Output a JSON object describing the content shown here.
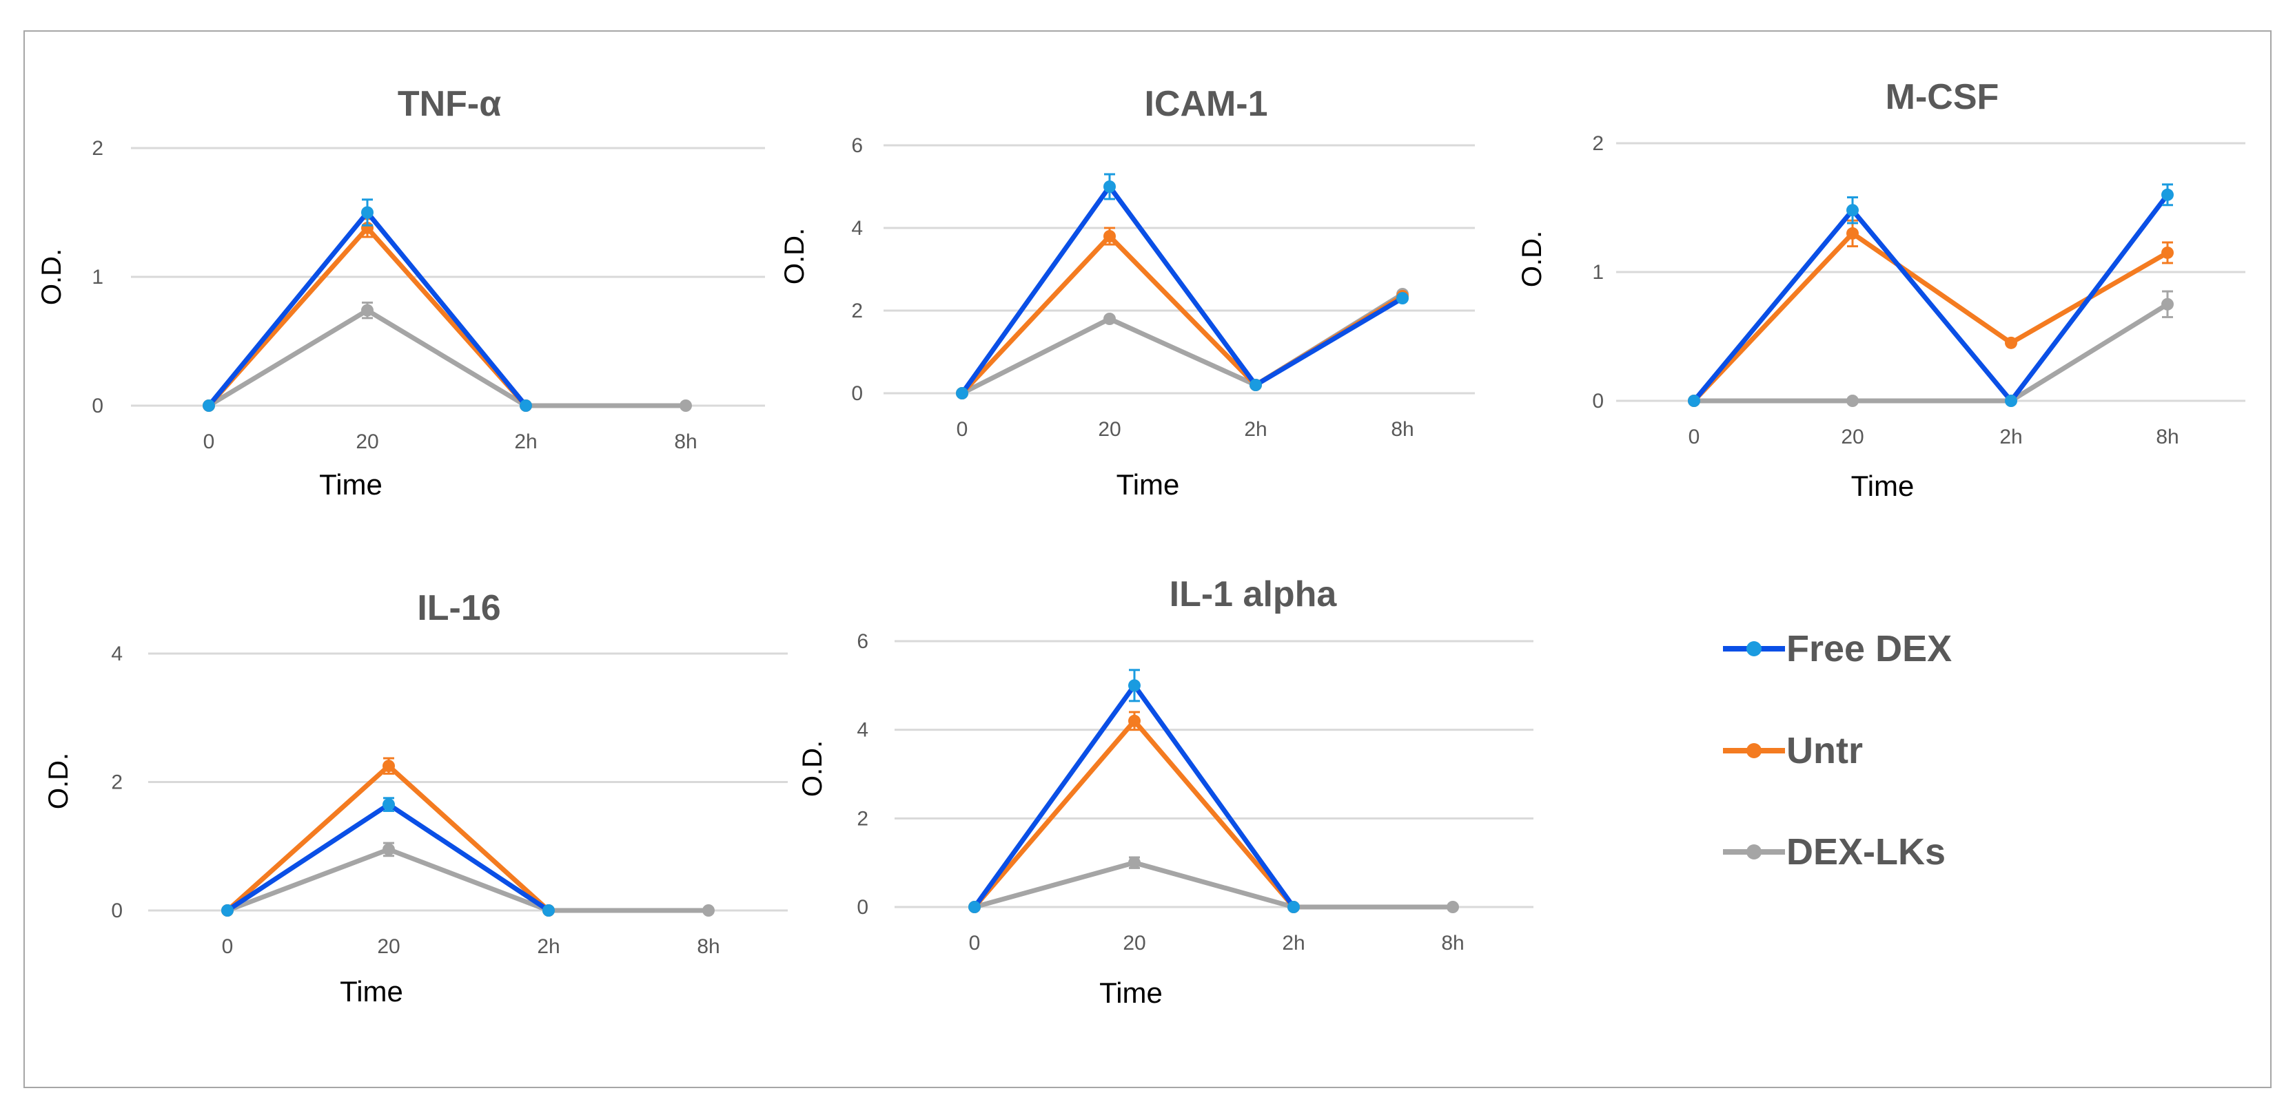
{
  "colors": {
    "free_dex": "#0a4fe6",
    "free_dex_err": "#1a9be0",
    "untr": "#f47b20",
    "dex_lks": "#a5a5a5",
    "grid": "#d9d9d9",
    "title": "#595959"
  },
  "legend": [
    {
      "label": "Free DEX",
      "color": "#0a4fe6"
    },
    {
      "label": "Untr",
      "color": "#f47b20"
    },
    {
      "label": "DEX-LKs",
      "color": "#a5a5a5"
    }
  ],
  "chart_data": [
    {
      "type": "line",
      "title": "TNF-α",
      "xlabel": "Time",
      "ylabel": "O.D.",
      "categories": [
        "0",
        "20",
        "2h",
        "8h"
      ],
      "ylim": [
        0,
        2
      ],
      "yticks": [
        0,
        1,
        2
      ],
      "series": [
        {
          "name": "Free DEX",
          "values": [
            0,
            1.5,
            0,
            null
          ],
          "err": [
            0,
            0.1,
            0,
            null
          ]
        },
        {
          "name": "Untr",
          "values": [
            0,
            1.38,
            0,
            null
          ],
          "err": [
            0,
            0.07,
            0,
            null
          ]
        },
        {
          "name": "DEX-LKs",
          "values": [
            0,
            0.74,
            0,
            0
          ],
          "err": [
            0,
            0.06,
            0,
            0
          ]
        }
      ]
    },
    {
      "type": "line",
      "title": "ICAM-1",
      "xlabel": "Time",
      "ylabel": "O.D.",
      "categories": [
        "0",
        "20",
        "2h",
        "8h"
      ],
      "ylim": [
        0,
        6
      ],
      "yticks": [
        0,
        2,
        4,
        6
      ],
      "series": [
        {
          "name": "Free DEX",
          "values": [
            0,
            5.0,
            0.2,
            2.3
          ],
          "err": [
            0,
            0.3,
            0,
            0
          ]
        },
        {
          "name": "Untr",
          "values": [
            0,
            3.8,
            0.2,
            2.35
          ],
          "err": [
            0,
            0.2,
            0,
            0
          ]
        },
        {
          "name": "DEX-LKs",
          "values": [
            0,
            1.8,
            0.2,
            2.4
          ],
          "err": [
            0,
            0.05,
            0,
            0.05
          ]
        }
      ]
    },
    {
      "type": "line",
      "title": "M-CSF",
      "xlabel": "Time",
      "ylabel": "O.D.",
      "categories": [
        "0",
        "20",
        "2h",
        "8h"
      ],
      "ylim": [
        0,
        2
      ],
      "yticks": [
        0,
        1,
        2
      ],
      "series": [
        {
          "name": "Free DEX",
          "values": [
            0,
            1.48,
            0,
            1.6
          ],
          "err": [
            0,
            0.1,
            0,
            0.08
          ]
        },
        {
          "name": "Untr",
          "values": [
            0,
            1.3,
            0.45,
            1.15
          ],
          "err": [
            0,
            0.1,
            0,
            0.08
          ]
        },
        {
          "name": "DEX-LKs",
          "values": [
            0,
            0,
            0,
            0.75
          ],
          "err": [
            0,
            0,
            0,
            0.1
          ]
        }
      ]
    },
    {
      "type": "line",
      "title": "IL-16",
      "xlabel": "Time",
      "ylabel": "O.D.",
      "categories": [
        "0",
        "20",
        "2h",
        "8h"
      ],
      "ylim": [
        0,
        4
      ],
      "yticks": [
        0,
        2,
        4
      ],
      "series": [
        {
          "name": "Free DEX",
          "values": [
            0,
            1.65,
            0,
            null
          ],
          "err": [
            0,
            0.1,
            0,
            null
          ]
        },
        {
          "name": "Untr",
          "values": [
            0,
            2.25,
            0,
            null
          ],
          "err": [
            0,
            0.12,
            0,
            null
          ]
        },
        {
          "name": "DEX-LKs",
          "values": [
            0,
            0.95,
            0,
            0
          ],
          "err": [
            0,
            0.1,
            0,
            0
          ]
        }
      ]
    },
    {
      "type": "line",
      "title": "IL-1 alpha",
      "xlabel": "Time",
      "ylabel": "O.D.",
      "categories": [
        "0",
        "20",
        "2h",
        "8h"
      ],
      "ylim": [
        0,
        6
      ],
      "yticks": [
        0,
        2,
        4,
        6
      ],
      "series": [
        {
          "name": "Free DEX",
          "values": [
            0,
            5.0,
            0,
            null
          ],
          "err": [
            0,
            0.35,
            0,
            null
          ]
        },
        {
          "name": "Untr",
          "values": [
            0,
            4.2,
            0,
            null
          ],
          "err": [
            0,
            0.2,
            0,
            null
          ]
        },
        {
          "name": "DEX-LKs",
          "values": [
            0,
            1.0,
            0,
            0
          ],
          "err": [
            0,
            0.12,
            0,
            0
          ]
        }
      ]
    }
  ]
}
